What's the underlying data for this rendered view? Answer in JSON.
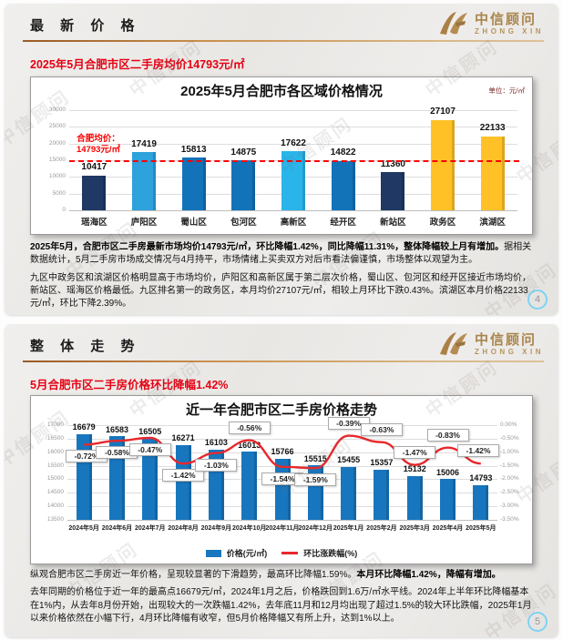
{
  "page": {
    "watermark": "中信顾问"
  },
  "logo": {
    "name": "中信顾问",
    "sub": "ZHONG XIN"
  },
  "slide1": {
    "header_title": "最 新 价 格",
    "subtitle": "2025年5月合肥市区二手房均价14793元/㎡",
    "page_number": "4",
    "paragraphs": [
      {
        "segments": [
          {
            "t": "2025年5月，合肥市区二手房最新市场均价14793元/㎡，环比降幅1.42%，同比降幅11.31%，整体降幅较上月有增加。",
            "b": true
          },
          {
            "t": "据相关数据统计，5月二手房市场成交情况与4月持平，市场情绪上买卖双方对后市看法偏谨慎，市场整体以观望为主。",
            "b": false
          }
        ]
      },
      {
        "segments": [
          {
            "t": "九区中政务区和滨湖区价格明显高于市场均价，庐阳区和高新区属于第二层次价格，蜀山区、包河区和经开区接近市场均价，新站区、瑶海区价格最低。九区排名第一的政务区，本月均价27107元/㎡，相较上月环比下跌0.43%。滨湖区本月价格22133元/㎡，环比下降2.39%。",
            "b": false
          }
        ]
      }
    ]
  },
  "slide2": {
    "header_title": "整 体 走 势",
    "subtitle": "5月合肥市区二手房价格环比降幅1.42%",
    "page_number": "5",
    "paragraphs": [
      {
        "segments": [
          {
            "t": "纵观合肥市区二手房近一年价格，呈现较显著的下滑趋势，最高环比降幅1.59%。",
            "b": false
          },
          {
            "t": "本月环比降幅1.42%，降幅有增加。",
            "b": true
          }
        ]
      },
      {
        "segments": [
          {
            "t": "去年同期的价格位于近一年的最高点16679元/㎡，2024年1月之后，价格跌回到1.6万/㎡水平线。2024年上半年环比降幅基本在1%内，从去年8月份开始，出现较大的一次跌幅1.42%，去年底11月和12月均出现了超过1.5%的较大环比跌幅，2025年1月以来价格依然在小幅下行，4月环比降幅有收窄，但5月价格降幅又有所上升，达到1%以上。",
            "b": false
          }
        ]
      }
    ]
  },
  "chart_data": [
    {
      "type": "bar",
      "title": "2025年5月合肥市各区域价格情况",
      "unit_label": "单位：元/㎡",
      "categories": [
        "瑶海区",
        "庐阳区",
        "蜀山区",
        "包河区",
        "高新区",
        "经开区",
        "新站区",
        "政务区",
        "滨湖区"
      ],
      "values": [
        10417,
        17419,
        15813,
        14875,
        17622,
        14822,
        11360,
        27107,
        22133
      ],
      "bar_colors": [
        "#1f3864",
        "#2da2dc",
        "#1273b9",
        "#1273b9",
        "#29b5ea",
        "#1273b9",
        "#1f3864",
        "#ffc125",
        "#ffc125"
      ],
      "ylim": [
        0,
        30000
      ],
      "ytick_step": 5000,
      "grid": true,
      "avg_line": {
        "value": 14793,
        "label_line1": "合肥均价：",
        "label_line2": "14793元/㎡",
        "color": "#fb0000"
      }
    },
    {
      "type": "bar+line",
      "title": "近一年合肥市区二手房价格走势",
      "categories": [
        "2024年5月",
        "2024年6月",
        "2024年7月",
        "2024年8月",
        "2024年9月",
        "2024年10月",
        "2024年11月",
        "2024年12月",
        "2025年1月",
        "2025年2月",
        "2025年3月",
        "2025年4月",
        "2025年5月"
      ],
      "series": [
        {
          "name": "价格(元/㎡)",
          "type": "bar",
          "color": "#1776be",
          "values": [
            16679,
            16583,
            16505,
            16271,
            16103,
            16013,
            15766,
            15515,
            15455,
            15357,
            15132,
            15006,
            14793
          ]
        },
        {
          "name": "环比涨跌幅(%)",
          "type": "line",
          "color": "#e8282c",
          "values": [
            -0.72,
            -0.58,
            -0.47,
            -1.42,
            -1.03,
            -0.56,
            -1.54,
            -1.59,
            -0.39,
            -0.63,
            -1.47,
            -0.83,
            -1.42
          ],
          "labels": [
            "-0.72%",
            "-0.58%",
            "-0.47%",
            "-1.42%",
            "-1.03%",
            "-0.56%",
            "-1.54%",
            "-1.59%",
            "-0.39%",
            "-0.63%",
            "-1.47%",
            "-0.83%",
            "-1.42%"
          ],
          "label_pos": [
            "below",
            "below",
            "below",
            "below",
            "below",
            "above",
            "below",
            "below",
            "above",
            "above",
            "above",
            "above",
            "above"
          ]
        }
      ],
      "ylim_left": [
        13500,
        17000
      ],
      "ytick_step_left": 500,
      "ylim_right": [
        -3.5,
        0
      ],
      "ytick_step_right": 0.5,
      "grid": true,
      "legend_position": "bottom"
    }
  ]
}
